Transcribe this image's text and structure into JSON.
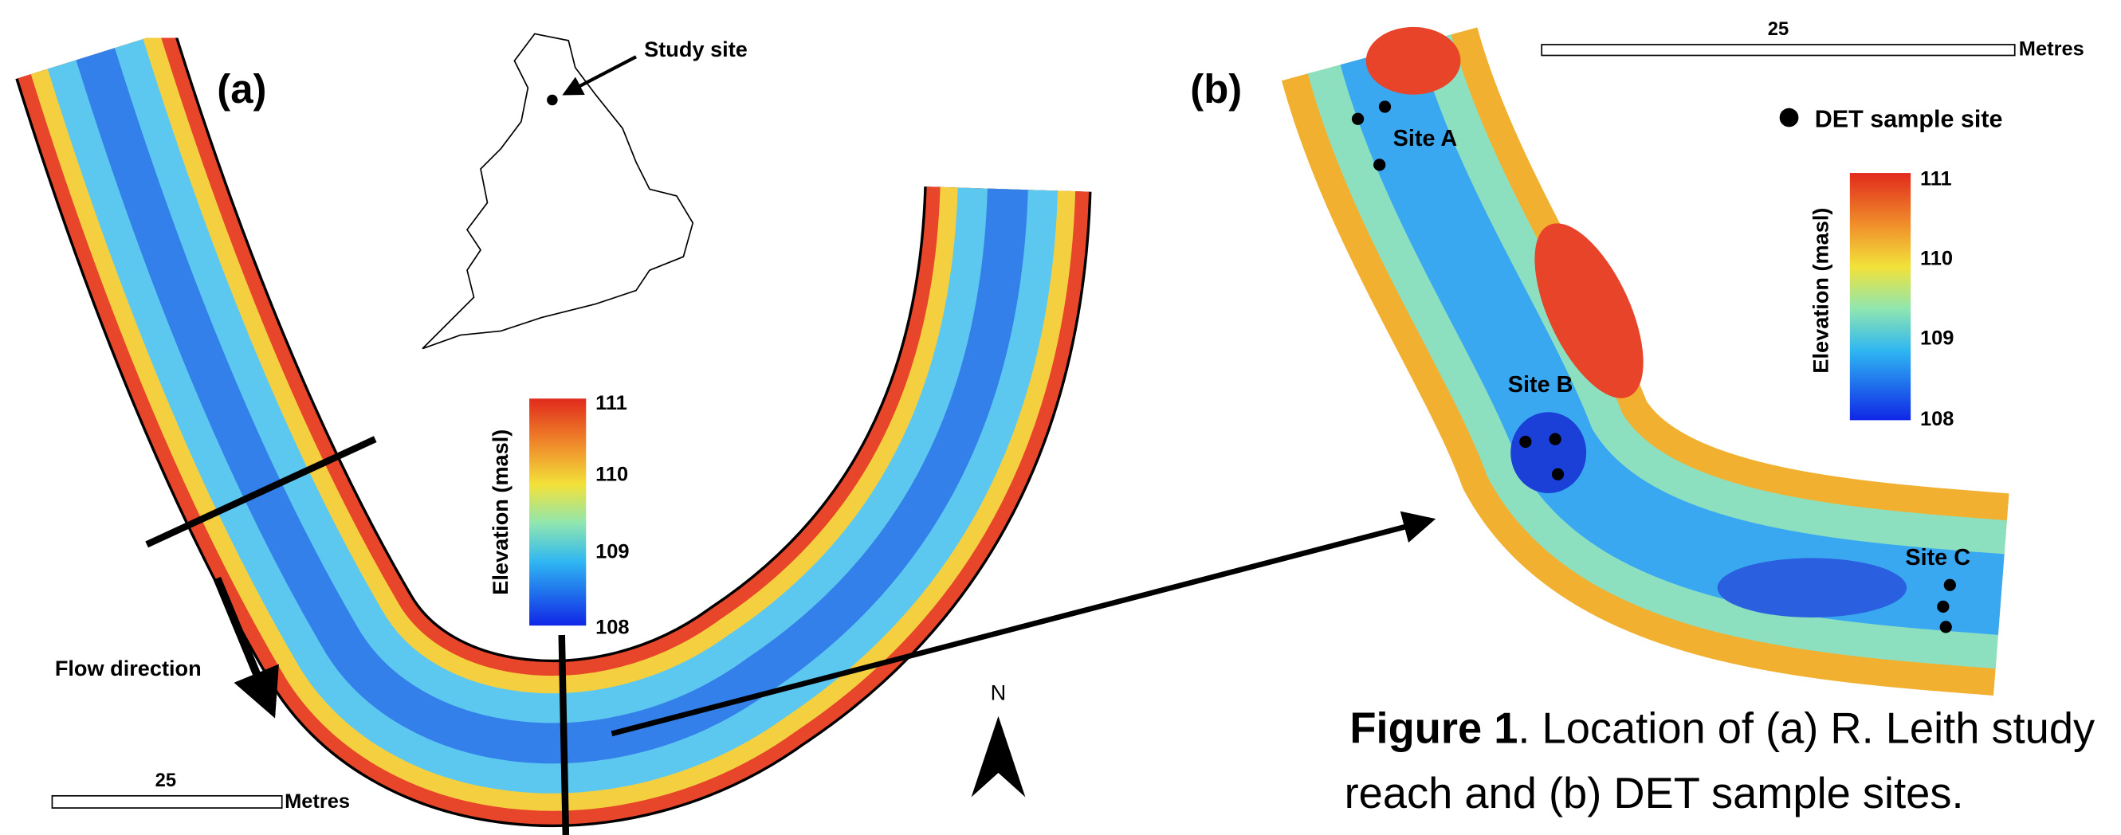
{
  "panel_a": {
    "label": "(a)",
    "inset_label": "Study site",
    "flow_label": "Flow direction",
    "scale_value": "25",
    "scale_unit": "Metres",
    "north": "N",
    "legend": {
      "title": "Elevation (masl)",
      "ticks": [
        "111",
        "110",
        "109",
        "108"
      ]
    }
  },
  "panel_b": {
    "label": "(b)",
    "scale_value": "25",
    "scale_unit": "Metres",
    "sample_legend": "DET sample site",
    "sites": [
      "Site A",
      "Site B",
      "Site C"
    ],
    "legend": {
      "title": "Elevation (masl)",
      "ticks": [
        "111",
        "110",
        "109",
        "108"
      ]
    }
  },
  "caption": {
    "label": "Figure 1",
    "lines": [
      ". Location of (a) R. Leith study",
      "reach and (b) DET sample sites."
    ]
  }
}
